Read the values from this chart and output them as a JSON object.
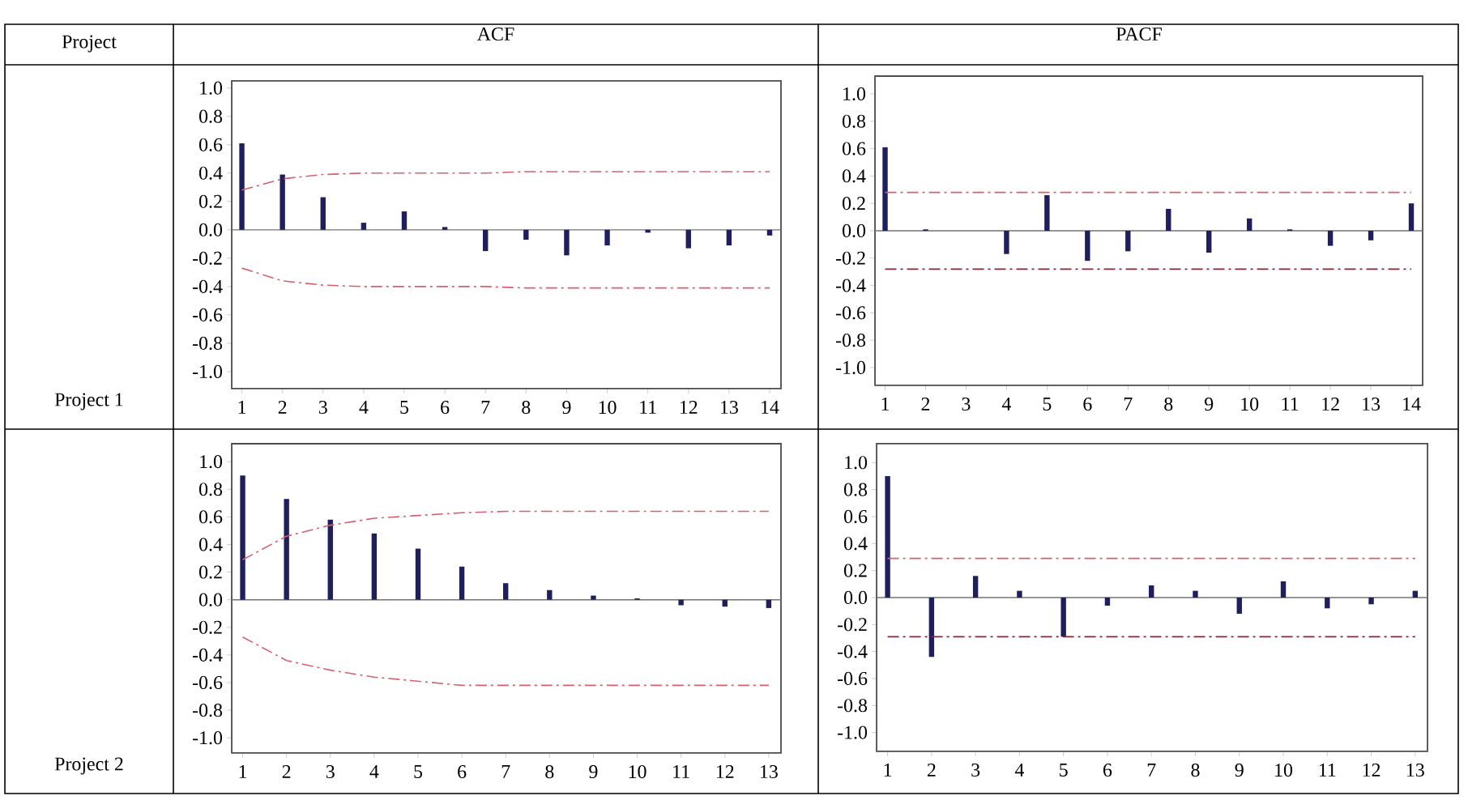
{
  "chart_data": [
    {
      "type": "bar",
      "title": "ACF",
      "annotations": [
        "Project",
        "Project 1"
      ],
      "categories": [
        "1",
        "2",
        "3",
        "4",
        "5",
        "6",
        "7",
        "8",
        "9",
        "10",
        "11",
        "12",
        "13",
        "14"
      ],
      "ylim": [
        -1.12,
        1.05
      ],
      "yticks": [
        {
          "value": -1.0,
          "label": "-1.0"
        },
        {
          "value": -0.8,
          "label": "-0.8"
        },
        {
          "value": -0.6,
          "label": "-0.6"
        },
        {
          "value": -0.4,
          "label": "-0.4"
        },
        {
          "value": -0.2,
          "label": "-0.2"
        },
        {
          "value": 0.0,
          "label": "0.0"
        },
        {
          "value": 0.2,
          "label": "0.2"
        },
        {
          "value": 0.4,
          "label": "0.4"
        },
        {
          "value": 0.6,
          "label": "0.6"
        },
        {
          "value": 0.8,
          "label": "0.8"
        },
        {
          "value": 1.0,
          "label": "1.0"
        }
      ],
      "series": [
        {
          "color": "#1f1f5e",
          "values": [
            0.61,
            0.39,
            0.23,
            0.05,
            0.13,
            0.02,
            -0.15,
            -0.07,
            -0.18,
            -0.11,
            -0.02,
            -0.13,
            -0.11,
            -0.04
          ]
        },
        {
          "type": "line",
          "line_style": "dashdot",
          "color": "#d8606e",
          "values": [
            0.28,
            0.36,
            0.39,
            0.4,
            0.4,
            0.4,
            0.4,
            0.41,
            0.41,
            0.41,
            0.41,
            0.41,
            0.41,
            0.41
          ]
        },
        {
          "type": "line",
          "line_style": "dashdot",
          "color": "#d8606e",
          "values": [
            -0.27,
            -0.36,
            -0.39,
            -0.4,
            -0.4,
            -0.4,
            -0.4,
            -0.41,
            -0.41,
            -0.41,
            -0.41,
            -0.41,
            -0.41,
            -0.41
          ]
        }
      ]
    },
    {
      "type": "bar",
      "title": "PACF",
      "categories": [
        "1",
        "2",
        "3",
        "4",
        "5",
        "6",
        "7",
        "8",
        "9",
        "10",
        "11",
        "12",
        "13",
        "14"
      ],
      "ylim": [
        -1.13,
        1.13
      ],
      "yticks": [
        {
          "value": -1.0,
          "label": "-1.0"
        },
        {
          "value": -0.8,
          "label": "-0.8"
        },
        {
          "value": -0.6,
          "label": "-0.6"
        },
        {
          "value": -0.4,
          "label": "-0.4"
        },
        {
          "value": -0.2,
          "label": "-0.2"
        },
        {
          "value": 0.0,
          "label": "0.0"
        },
        {
          "value": 0.2,
          "label": "0.2"
        },
        {
          "value": 0.4,
          "label": "0.4"
        },
        {
          "value": 0.6,
          "label": "0.6"
        },
        {
          "value": 0.8,
          "label": "0.8"
        },
        {
          "value": 1.0,
          "label": "1.0"
        }
      ],
      "series": [
        {
          "color": "#1f1f5e",
          "values": [
            0.61,
            0.01,
            0.0,
            -0.17,
            0.26,
            -0.22,
            -0.15,
            0.16,
            -0.16,
            0.09,
            0.01,
            -0.11,
            -0.07,
            0.2
          ]
        }
      ],
      "ref_lines": [
        {
          "axis": "y",
          "value": 0.28,
          "color": "#d8606e",
          "line_style": "dashdot"
        },
        {
          "axis": "y",
          "value": -0.28,
          "color": "#7a2a3a",
          "line_style": "dashdot"
        }
      ]
    },
    {
      "type": "bar",
      "annotations": [
        "Project 2"
      ],
      "categories": [
        "1",
        "2",
        "3",
        "4",
        "5",
        "6",
        "7",
        "8",
        "9",
        "10",
        "11",
        "12",
        "13"
      ],
      "ylim": [
        -1.11,
        1.13
      ],
      "yticks": [
        {
          "value": -1.0,
          "label": "-1.0"
        },
        {
          "value": -0.8,
          "label": "-0.8"
        },
        {
          "value": -0.6,
          "label": "-0.6"
        },
        {
          "value": -0.4,
          "label": "-0.4"
        },
        {
          "value": -0.2,
          "label": "-0.2"
        },
        {
          "value": 0.0,
          "label": "0.0"
        },
        {
          "value": 0.2,
          "label": "0.2"
        },
        {
          "value": 0.4,
          "label": "0.4"
        },
        {
          "value": 0.6,
          "label": "0.6"
        },
        {
          "value": 0.8,
          "label": "0.8"
        },
        {
          "value": 1.0,
          "label": "1.0"
        }
      ],
      "series": [
        {
          "color": "#1f1f5e",
          "values": [
            0.9,
            0.73,
            0.58,
            0.48,
            0.37,
            0.24,
            0.12,
            0.07,
            0.03,
            0.01,
            -0.04,
            -0.05,
            -0.06
          ]
        },
        {
          "type": "line",
          "line_style": "dashdot",
          "color": "#d8606e",
          "values": [
            0.29,
            0.46,
            0.54,
            0.59,
            0.61,
            0.63,
            0.64,
            0.64,
            0.64,
            0.64,
            0.64,
            0.64,
            0.64
          ]
        },
        {
          "type": "line",
          "line_style": "dashdot",
          "color": "#d8606e",
          "values": [
            -0.27,
            -0.44,
            -0.51,
            -0.56,
            -0.59,
            -0.62,
            -0.62,
            -0.62,
            -0.62,
            -0.62,
            -0.62,
            -0.62,
            -0.62
          ]
        }
      ]
    },
    {
      "type": "bar",
      "categories": [
        "1",
        "2",
        "3",
        "4",
        "5",
        "6",
        "7",
        "8",
        "9",
        "10",
        "11",
        "12",
        "13"
      ],
      "ylim": [
        -1.14,
        1.14
      ],
      "yticks": [
        {
          "value": -1.0,
          "label": "-1.0"
        },
        {
          "value": -0.8,
          "label": "-0.8"
        },
        {
          "value": -0.6,
          "label": "-0.6"
        },
        {
          "value": -0.4,
          "label": "-0.4"
        },
        {
          "value": -0.2,
          "label": "-0.2"
        },
        {
          "value": 0.0,
          "label": "0.0"
        },
        {
          "value": 0.2,
          "label": "0.2"
        },
        {
          "value": 0.4,
          "label": "0.4"
        },
        {
          "value": 0.6,
          "label": "0.6"
        },
        {
          "value": 0.8,
          "label": "0.8"
        },
        {
          "value": 1.0,
          "label": "1.0"
        }
      ],
      "series": [
        {
          "color": "#1f1f5e",
          "values": [
            0.9,
            -0.44,
            0.16,
            0.05,
            -0.29,
            -0.06,
            0.09,
            0.05,
            -0.12,
            0.12,
            -0.08,
            -0.05,
            0.05
          ]
        }
      ],
      "ref_lines": [
        {
          "axis": "y",
          "value": 0.29,
          "color": "#d8606e",
          "line_style": "dashdot"
        },
        {
          "axis": "y",
          "value": -0.29,
          "color": "#7a2a3a",
          "line_style": "dashdot"
        }
      ]
    }
  ]
}
